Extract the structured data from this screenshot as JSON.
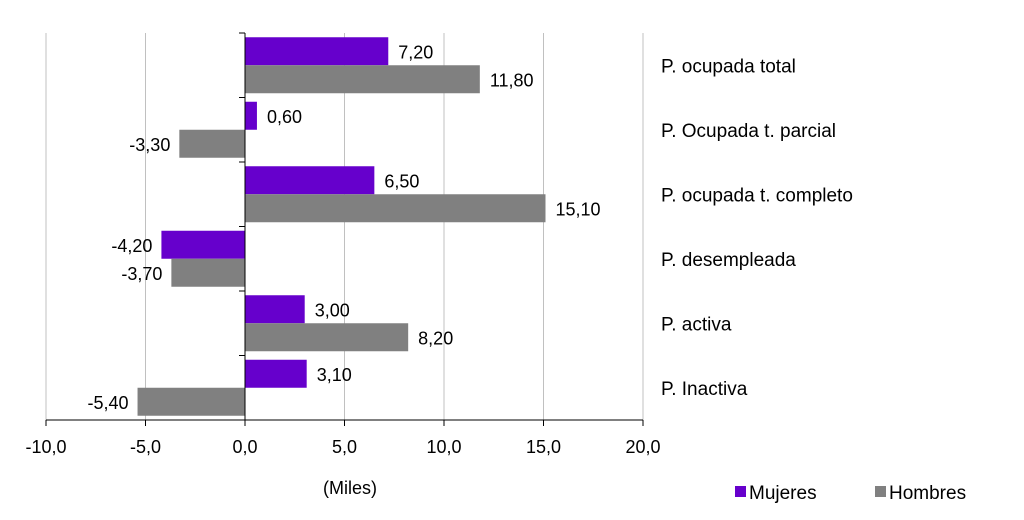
{
  "chart_data": {
    "type": "bar",
    "orientation": "horizontal",
    "categories": [
      "P. ocupada total",
      "P. Ocupada t. parcial",
      "P. ocupada t. completo",
      "P. desempleada",
      "P. activa",
      "P. Inactiva"
    ],
    "series": [
      {
        "name": "Mujeres",
        "color": "#6600CC",
        "values": [
          7.2,
          0.6,
          6.5,
          -4.2,
          3.0,
          3.1
        ],
        "labels": [
          "7,20",
          "0,60",
          "6,50",
          "-4,20",
          "3,00",
          "3,10"
        ]
      },
      {
        "name": "Hombres",
        "color": "#808080",
        "values": [
          11.8,
          -3.3,
          15.1,
          -3.7,
          8.2,
          -5.4
        ],
        "labels": [
          "11,80",
          "-3,30",
          "15,10",
          "-3,70",
          "8,20",
          "-5,40"
        ]
      }
    ],
    "xlim": [
      -10,
      20
    ],
    "xticks": [
      -10,
      -5,
      0,
      5,
      10,
      15,
      20
    ],
    "xtick_labels": [
      "-10,0",
      "-5,0",
      "0,0",
      "5,0",
      "10,0",
      "15,0",
      "20,0"
    ],
    "xlabel": "(Miles)",
    "grid": "vertical",
    "legend": "bottom-right"
  }
}
